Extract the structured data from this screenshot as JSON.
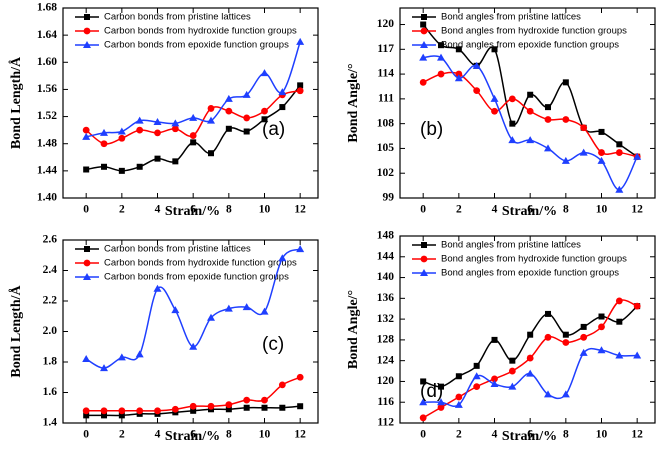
{
  "chart_data": [
    {
      "type": "line",
      "xlabel": "Strain/%",
      "ylabel": "Bond Length/Å",
      "annotation": "(a)",
      "x": [
        0,
        1,
        2,
        3,
        4,
        5,
        6,
        7,
        8,
        9,
        10,
        11,
        12
      ],
      "xlim": [
        -1.3,
        13
      ],
      "xticks": [
        0,
        2,
        4,
        6,
        8,
        10,
        12
      ],
      "ylim": [
        1.4,
        1.68
      ],
      "yticks": [
        {
          "value": 1.4,
          "label": "1.40"
        },
        {
          "value": 1.44,
          "label": "1.44"
        },
        {
          "value": 1.48,
          "label": "1.48"
        },
        {
          "value": 1.52,
          "label": "1.52"
        },
        {
          "value": 1.56,
          "label": "1.56"
        },
        {
          "value": 1.6,
          "label": "1.60"
        },
        {
          "value": 1.64,
          "label": "1.64"
        },
        {
          "value": 1.68,
          "label": "1.68"
        }
      ],
      "legend": "upper left",
      "series": [
        {
          "name": "Carbon bonds from pristine lattices",
          "color": "#000000",
          "marker": "square",
          "values": [
            1.442,
            1.446,
            1.44,
            1.446,
            1.458,
            1.454,
            1.482,
            1.466,
            1.502,
            1.498,
            1.516,
            1.534,
            1.566
          ]
        },
        {
          "name": "Carbon bonds from hydroxide function groups",
          "color": "#ff0000",
          "marker": "circle",
          "values": [
            1.5,
            1.48,
            1.488,
            1.5,
            1.496,
            1.502,
            1.492,
            1.532,
            1.528,
            1.518,
            1.528,
            1.552,
            1.558
          ]
        },
        {
          "name": "Carbon bonds from epoxide function groups",
          "color": "#1f3fff",
          "marker": "triangle",
          "values": [
            1.49,
            1.496,
            1.498,
            1.514,
            1.512,
            1.51,
            1.518,
            1.514,
            1.546,
            1.552,
            1.584,
            1.556,
            1.63
          ]
        }
      ]
    },
    {
      "type": "line",
      "xlabel": "Strain/%",
      "ylabel": "Bond Angle/°",
      "annotation": "(b)",
      "x": [
        0,
        1,
        2,
        3,
        4,
        5,
        6,
        7,
        8,
        9,
        10,
        11,
        12
      ],
      "xlim": [
        -1.3,
        13
      ],
      "xticks": [
        0,
        2,
        4,
        6,
        8,
        10,
        12
      ],
      "ylim": [
        99,
        122
      ],
      "yticks": [
        99,
        102,
        105,
        108,
        111,
        114,
        117,
        120
      ],
      "legend": "upper left",
      "series": [
        {
          "name": "Bond angles from pristine lattices",
          "color": "#000000",
          "marker": "square",
          "values": [
            120,
            117.5,
            117,
            115,
            117,
            108,
            111.5,
            110,
            113,
            107.5,
            107,
            105.5,
            104
          ]
        },
        {
          "name": "Bond angles from hydroxide function groups",
          "color": "#ff0000",
          "marker": "circle",
          "values": [
            113,
            114,
            114,
            112,
            109.5,
            111,
            109.5,
            108.5,
            108.5,
            107.5,
            104.5,
            104.5,
            104
          ]
        },
        {
          "name": "Bond angles from epoxide function groups",
          "color": "#1f3fff",
          "marker": "triangle",
          "values": [
            116,
            116,
            113.5,
            115,
            111,
            106,
            106,
            105,
            103.5,
            104.5,
            103.5,
            100,
            104
          ]
        }
      ]
    },
    {
      "type": "line",
      "xlabel": "Strain/%",
      "ylabel": "Bond Length/Å",
      "annotation": "(c)",
      "x": [
        0,
        1,
        2,
        3,
        4,
        5,
        6,
        7,
        8,
        9,
        10,
        11,
        12
      ],
      "xlim": [
        -1.3,
        13
      ],
      "xticks": [
        0,
        2,
        4,
        6,
        8,
        10,
        12
      ],
      "ylim": [
        1.4,
        2.6
      ],
      "yticks": [
        1.4,
        1.6,
        1.8,
        {
          "value": 2,
          "label": "2.0"
        },
        2.2,
        2.4,
        2.6
      ],
      "legend": "upper left",
      "series": [
        {
          "name": "Carbon bonds from pristine lattices",
          "color": "#000000",
          "marker": "square",
          "values": [
            1.45,
            1.45,
            1.45,
            1.46,
            1.46,
            1.47,
            1.48,
            1.49,
            1.49,
            1.5,
            1.5,
            1.5,
            1.51
          ]
        },
        {
          "name": "Carbon bonds from hydroxide function groups",
          "color": "#ff0000",
          "marker": "circle",
          "values": [
            1.48,
            1.48,
            1.48,
            1.48,
            1.48,
            1.49,
            1.51,
            1.51,
            1.52,
            1.55,
            1.55,
            1.65,
            1.7
          ]
        },
        {
          "name": "Carbon bonds from epoxide function groups",
          "color": "#1f3fff",
          "marker": "triangle",
          "values": [
            1.82,
            1.76,
            1.83,
            1.85,
            2.28,
            2.14,
            1.9,
            2.09,
            2.15,
            2.16,
            2.13,
            2.48,
            2.54
          ]
        }
      ]
    },
    {
      "type": "line",
      "xlabel": "Strain/%",
      "ylabel": "Bond Angle/°",
      "annotation": "(d)",
      "x": [
        0,
        1,
        2,
        3,
        4,
        5,
        6,
        7,
        8,
        9,
        10,
        11,
        12
      ],
      "xlim": [
        -1.3,
        13
      ],
      "xticks": [
        0,
        2,
        4,
        6,
        8,
        10,
        12
      ],
      "ylim": [
        112,
        148
      ],
      "yticks": [
        112,
        116,
        120,
        124,
        128,
        132,
        136,
        140,
        144,
        148
      ],
      "legend": "upper left",
      "series": [
        {
          "name": "Bond angles from pristine lattices",
          "color": "#000000",
          "marker": "square",
          "values": [
            120,
            119,
            121,
            123,
            128,
            124,
            129,
            133,
            129,
            130.5,
            132.5,
            131.5,
            134.5
          ]
        },
        {
          "name": "Bond angles from hydroxide function groups",
          "color": "#ff0000",
          "marker": "circle",
          "values": [
            113,
            115,
            117,
            119,
            120.5,
            122,
            124.5,
            128.5,
            127.5,
            128.5,
            130.5,
            135.5,
            134.5
          ]
        },
        {
          "name": "Bond angles from epoxide function groups",
          "color": "#1f3fff",
          "marker": "triangle",
          "values": [
            116,
            116,
            115.5,
            121,
            119.5,
            119,
            121.5,
            117.5,
            117.5,
            125.5,
            126,
            125,
            125
          ]
        }
      ]
    }
  ]
}
